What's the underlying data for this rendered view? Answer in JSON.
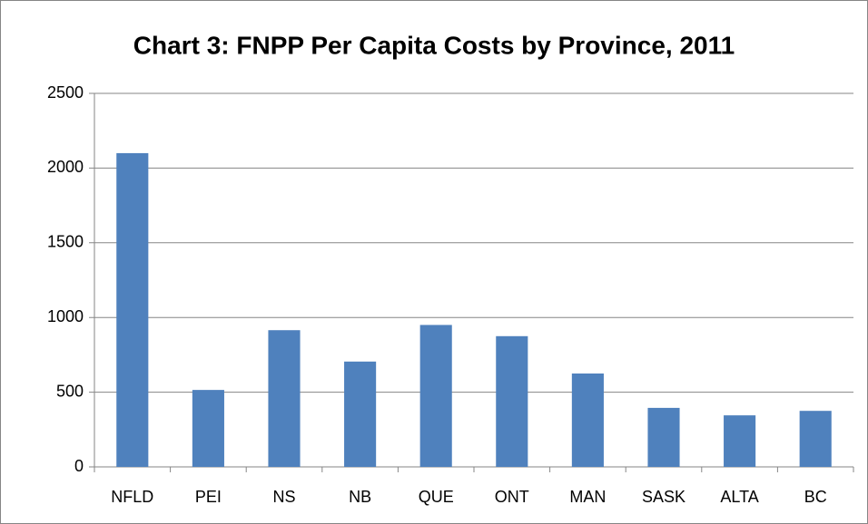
{
  "chart_data": {
    "type": "bar",
    "title": "Chart 3: FNPP Per Capita Costs by Province, 2011",
    "categories": [
      "NFLD",
      "PEI",
      "NS",
      "NB",
      "QUE",
      "ONT",
      "MAN",
      "SASK",
      "ALTA",
      "BC"
    ],
    "values": [
      2100,
      515,
      915,
      705,
      950,
      875,
      625,
      395,
      345,
      375
    ],
    "color": "#4f81bd",
    "ylim": [
      0,
      2500
    ],
    "yticks": [
      0,
      500,
      1000,
      1500,
      2000,
      2500
    ],
    "grid": true
  }
}
